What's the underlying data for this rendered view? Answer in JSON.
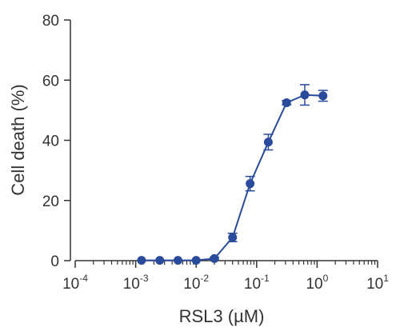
{
  "chart_data": {
    "type": "scatter",
    "title": "",
    "xlabel": "RSL3 (µM)",
    "ylabel": "Cell death (%)",
    "xscale": "log",
    "xlim": [
      0.0001,
      10
    ],
    "ylim": [
      0,
      80
    ],
    "x_ticks": [
      {
        "base": "10",
        "exp": "-4",
        "value": 0.0001
      },
      {
        "base": "10",
        "exp": "-3",
        "value": 0.001
      },
      {
        "base": "10",
        "exp": "-2",
        "value": 0.01
      },
      {
        "base": "10",
        "exp": "-1",
        "value": 0.1
      },
      {
        "base": "10",
        "exp": "0",
        "value": 1
      },
      {
        "base": "10",
        "exp": "1",
        "value": 10
      }
    ],
    "y_ticks": [
      {
        "label": "0",
        "value": 0
      },
      {
        "label": "20",
        "value": 20
      },
      {
        "label": "40",
        "value": 40
      },
      {
        "label": "60",
        "value": 60
      },
      {
        "label": "80",
        "value": 80
      }
    ],
    "grid": false,
    "legend": "none",
    "connected": true,
    "series": [
      {
        "color": "#2a4b9b",
        "points": [
          {
            "x": 0.00125,
            "y": 0.1,
            "err": 0
          },
          {
            "x": 0.0025,
            "y": 0.1,
            "err": 0
          },
          {
            "x": 0.005,
            "y": 0.1,
            "err": 0
          },
          {
            "x": 0.01,
            "y": 0.1,
            "err": 0
          },
          {
            "x": 0.02,
            "y": 0.7,
            "err": 0.4
          },
          {
            "x": 0.04,
            "y": 7.7,
            "err": 1.4
          },
          {
            "x": 0.078,
            "y": 25.6,
            "err": 2.4
          },
          {
            "x": 0.156,
            "y": 39.4,
            "err": 2.6
          },
          {
            "x": 0.3125,
            "y": 52.5,
            "err": 0.7
          },
          {
            "x": 0.625,
            "y": 55.1,
            "err": 3.4
          },
          {
            "x": 1.25,
            "y": 54.8,
            "err": 1.8
          }
        ]
      }
    ]
  }
}
